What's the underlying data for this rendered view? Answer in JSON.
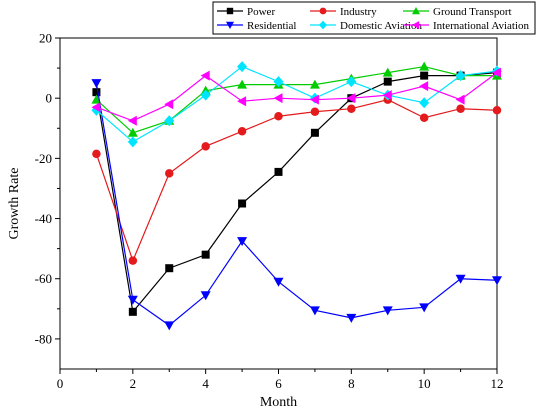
{
  "chart_data": {
    "type": "line",
    "xlabel": "Month",
    "ylabel": "Growth Rate",
    "xlim": [
      0,
      12
    ],
    "ylim": [
      -90,
      20
    ],
    "xticks": [
      0,
      2,
      4,
      6,
      8,
      10,
      12
    ],
    "yticks": [
      -80,
      -60,
      -40,
      -20,
      0,
      20
    ],
    "grid": false,
    "legend_position": "top-right",
    "x": [
      1,
      2,
      3,
      4,
      5,
      6,
      7,
      8,
      9,
      10,
      11,
      12
    ],
    "series": [
      {
        "name": "Power",
        "color": "#000000",
        "marker": "square",
        "values": [
          2,
          -71,
          -56.5,
          -52,
          -35,
          -24.5,
          -11.5,
          0,
          5.5,
          7.5,
          7.5,
          8.5
        ]
      },
      {
        "name": "Industry",
        "color": "#e41a1c",
        "marker": "circle",
        "values": [
          -18.5,
          -54,
          -25,
          -16,
          -11,
          -6,
          -4.5,
          -3.5,
          -0.5,
          -6.5,
          -3.5,
          -4
        ]
      },
      {
        "name": "Ground Transport",
        "color": "#00cc00",
        "marker": "triangle-up",
        "values": [
          -0.5,
          -11.5,
          -7.5,
          2.5,
          4.5,
          4.5,
          4.5,
          6.5,
          8.5,
          10.5,
          7.5,
          7.5
        ]
      },
      {
        "name": "Residential",
        "color": "#0000ff",
        "marker": "triangle-down",
        "values": [
          5,
          -67,
          -75.5,
          -65.5,
          -47.5,
          -61,
          -70.5,
          -73,
          -70.5,
          -69.5,
          -60,
          -60.5
        ]
      },
      {
        "name": "Domestic Aviation",
        "color": "#00e5ff",
        "marker": "diamond",
        "values": [
          -4,
          -14.5,
          -7.5,
          1,
          10.5,
          5.5,
          0,
          5.5,
          1,
          -1.5,
          7.5,
          9
        ]
      },
      {
        "name": "International Aviation",
        "color": "#ff00ff",
        "marker": "triangle-left",
        "values": [
          -3,
          -7.5,
          -2,
          7.5,
          -1,
          0,
          -0.5,
          0,
          1,
          4,
          -0.5,
          8.5
        ]
      }
    ]
  }
}
